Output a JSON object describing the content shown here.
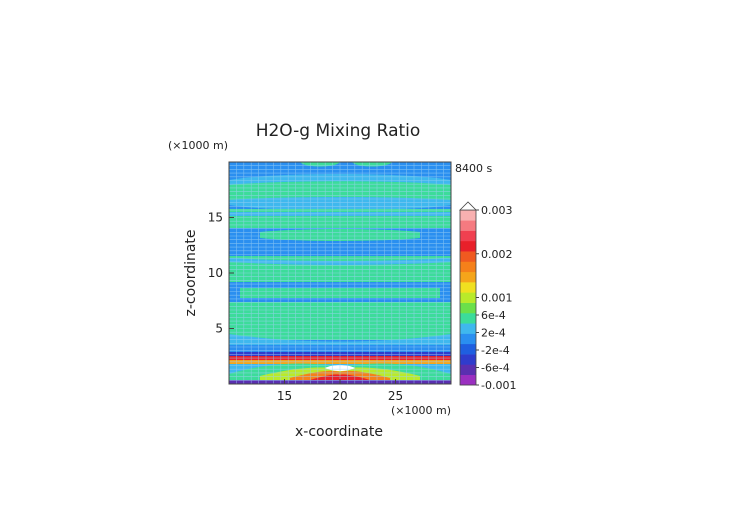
{
  "chart_data": {
    "type": "heatmap",
    "title": "H2O-g Mixing Ratio",
    "xlabel": "x-coordinate",
    "ylabel": "z-coordinate",
    "x_unit": "(×1000 m)",
    "y_unit": "(×1000 m)",
    "time_label": "8400 s",
    "xlim": [
      10,
      30
    ],
    "ylim": [
      0,
      20
    ],
    "x_ticks": [
      15,
      20,
      25
    ],
    "y_ticks": [
      5,
      10,
      15
    ],
    "colorbar": {
      "levels": [
        -0.001,
        -0.0008,
        -0.0006,
        -0.0004,
        -0.0002,
        0,
        0.0002,
        0.0004,
        0.0006,
        0.0008,
        0.001,
        0.0013,
        0.0016,
        0.002,
        0.0023,
        0.0026,
        0.003
      ],
      "colors": [
        "#9a2fc0",
        "#5a2fb0",
        "#2f3ccc",
        "#1f5fe0",
        "#2a8ff0",
        "#3fb8ee",
        "#3cdc9a",
        "#6be04a",
        "#b9ea2a",
        "#f0e020",
        "#f5a51a",
        "#f5801a",
        "#f05a20",
        "#e8202a",
        "#f04050",
        "#f57a80",
        "#f8b0b0"
      ],
      "tick_labels": [
        "0.003",
        "0.002",
        "0.001",
        "6e-4",
        "2e-4",
        "-2e-4",
        "-6e-4",
        "-0.001"
      ],
      "tick_values": [
        0.003,
        0.002,
        0.001,
        0.0006,
        0.0002,
        -0.0002,
        -0.0006,
        -0.001
      ]
    }
  }
}
